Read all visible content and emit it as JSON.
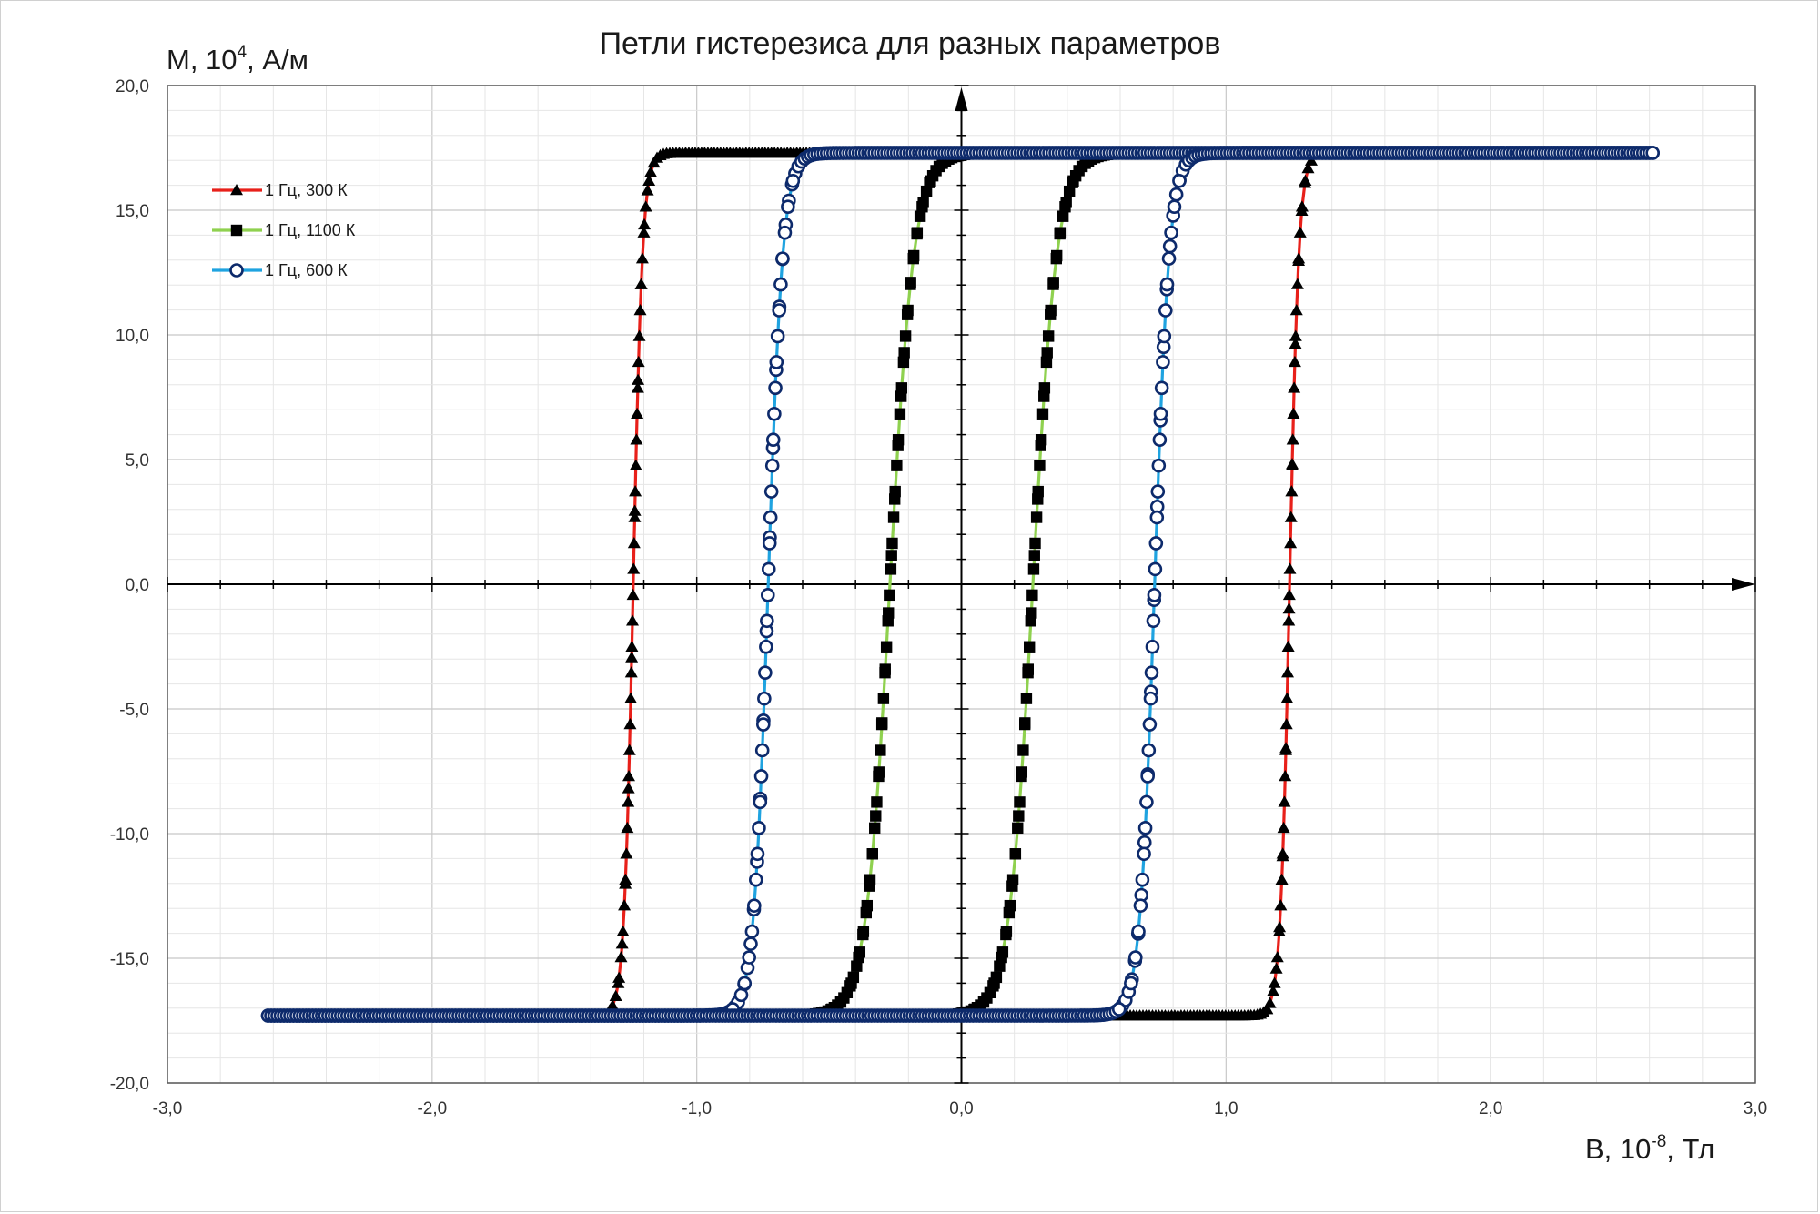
{
  "chart_data": {
    "type": "scatter",
    "title": "Петли гистерезиса для разных параметров",
    "ylabel": {
      "base": "M, 10",
      "sup": "4",
      "rest": ", А/м"
    },
    "xlabel": {
      "base": "B, 10",
      "sup": "-8",
      "rest": ", Тл"
    },
    "xlim": [
      -3.0,
      3.0
    ],
    "ylim": [
      -20.0,
      20.0
    ],
    "x_ticks": [
      "-3,0",
      "-2,0",
      "-1,0",
      "0,0",
      "1,0",
      "2,0",
      "3,0"
    ],
    "x_tick_values": [
      -3,
      -2,
      -1,
      0,
      1,
      2,
      3
    ],
    "y_ticks": [
      "20,0",
      "15,0",
      "10,0",
      "5,0",
      "0,0",
      "-5,0",
      "-10,0",
      "-15,0",
      "-20,0"
    ],
    "y_tick_values": [
      20,
      15,
      10,
      5,
      0,
      -5,
      -10,
      -15,
      -20
    ],
    "grid": true,
    "legend_position": "top-left",
    "saturation_m": 17.3,
    "series": [
      {
        "name": "1 Гц, 300 К",
        "line_color": "#e8201a",
        "marker": "triangle",
        "marker_color": "#000000",
        "coercivity_b": 1.24,
        "loop_width": 0.035,
        "x_min": -1.33,
        "x_max": 1.33
      },
      {
        "name": "1 Гц, 1100 К",
        "line_color": "#8fd14f",
        "marker": "square",
        "marker_color": "#000000",
        "coercivity_b": 0.27,
        "loop_width": 0.09,
        "x_min": -0.9,
        "x_max": 0.9
      },
      {
        "name": "1 Гц, 600 К",
        "line_color": "#1fa3e0",
        "marker": "circle",
        "marker_color": "#0d2a6b",
        "coercivity_b": 0.73,
        "loop_width": 0.055,
        "x_min": -2.62,
        "x_max": 2.62
      }
    ]
  }
}
